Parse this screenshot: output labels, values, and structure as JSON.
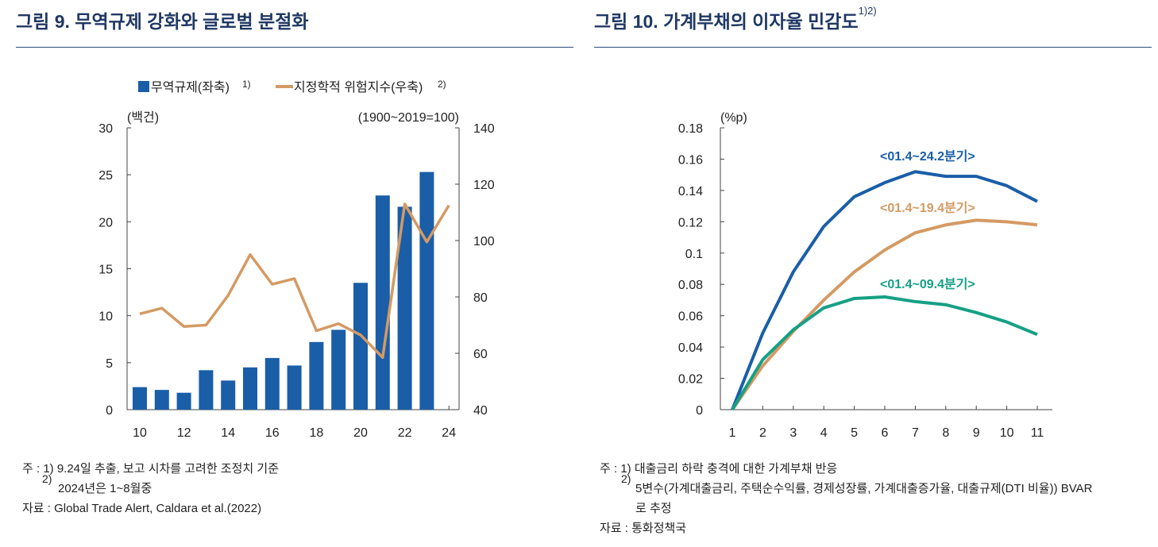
{
  "left_figure": {
    "title": "그림 9. 무역규제 강화와 글로벌 분절화",
    "notes_prefix": "주 :",
    "note_marks": [
      "1)",
      "2)"
    ],
    "notes": [
      "9.24일 추출, 보고 시차를 고려한 조정치 기준",
      "2024년은 1~8월중"
    ],
    "source_prefix": "자료 :",
    "source": "Global Trade Alert, Caldara et al.(2022)"
  },
  "right_figure": {
    "title": "그림 10. 가계부채의 이자율 민감도",
    "title_sup": "1)2)",
    "notes_prefix": "주 :",
    "note_marks": [
      "1)",
      "2)"
    ],
    "notes": [
      "대출금리 하락 충격에 대한 가계부채 반응",
      "5변수(가계대출금리, 주택순수익률, 경제성장률, 가계대출증가율, 대출규제(DTI 비율)) BVAR",
      "로 추정"
    ],
    "source_prefix": "자료 :",
    "source": "통화정책국"
  },
  "chart_data": [
    {
      "type": "bar",
      "title": "그림 9. 무역규제 강화와 글로벌 분절화",
      "ylabel_left": "(백건)",
      "ylabel_right": "(1900~2019=100)",
      "x": [
        10,
        11,
        12,
        13,
        14,
        15,
        16,
        17,
        18,
        19,
        20,
        21,
        22,
        23,
        24
      ],
      "x_ticks": [
        "10",
        "12",
        "14",
        "16",
        "18",
        "20",
        "22",
        "24"
      ],
      "x_tick_values": [
        10,
        12,
        14,
        16,
        18,
        20,
        22,
        24
      ],
      "ylim_left": [
        0,
        30
      ],
      "yticks_left": [
        0,
        5,
        10,
        15,
        20,
        25,
        30
      ],
      "ylim_right": [
        40,
        140
      ],
      "yticks_right": [
        40,
        60,
        80,
        100,
        120,
        140
      ],
      "series": [
        {
          "name": "무역규제(좌축)",
          "note": "1)",
          "type": "bar",
          "axis": "left",
          "color": "#1a5ea8",
          "x": [
            10,
            11,
            12,
            13,
            14,
            15,
            16,
            17,
            18,
            19,
            20,
            21,
            22,
            23
          ],
          "values": [
            2.4,
            2.1,
            1.8,
            4.2,
            3.1,
            4.5,
            5.5,
            4.7,
            7.2,
            8.5,
            13.5,
            22.8,
            21.6,
            25.3
          ]
        },
        {
          "name": "지정학적 위험지수(우축)",
          "note": "2)",
          "type": "line",
          "axis": "right",
          "color": "#d49a63",
          "x": [
            10,
            11,
            12,
            13,
            14,
            15,
            16,
            17,
            18,
            19,
            20,
            21,
            22,
            23,
            24
          ],
          "values": [
            74,
            76,
            69.5,
            70,
            80.5,
            95,
            84.5,
            86.5,
            68,
            70.5,
            66.5,
            58.5,
            113,
            99.5,
            112.5
          ]
        }
      ]
    },
    {
      "type": "line",
      "title": "그림 10. 가계부채의 이자율 민감도",
      "ylabel": "(%p)",
      "x": [
        1,
        2,
        3,
        4,
        5,
        6,
        7,
        8,
        9,
        10,
        11
      ],
      "ylim": [
        0,
        0.18
      ],
      "yticks": [
        0,
        0.02,
        0.04,
        0.06,
        0.08,
        0.1,
        0.12,
        0.14,
        0.16,
        0.18
      ],
      "ytick_labels": [
        "0",
        "0.02",
        "0.04",
        "0.06",
        "0.08",
        "0.1",
        "0.12",
        "0.14",
        "0.16",
        "0.18"
      ],
      "series": [
        {
          "name": "<01.4~24.2분기>",
          "color": "#1a5ea8",
          "values": [
            0,
            0.049,
            0.088,
            0.117,
            0.136,
            0.145,
            0.152,
            0.149,
            0.149,
            0.143,
            0.133
          ]
        },
        {
          "name": "<01.4~19.4분기>",
          "color": "#d49a63",
          "values": [
            0,
            0.028,
            0.05,
            0.07,
            0.088,
            0.102,
            0.113,
            0.118,
            0.121,
            0.12,
            0.118
          ]
        },
        {
          "name": "<01.4~09.4분기>",
          "color": "#16a085",
          "values": [
            0,
            0.032,
            0.051,
            0.065,
            0.071,
            0.072,
            0.069,
            0.067,
            0.062,
            0.056,
            0.048
          ]
        }
      ]
    }
  ]
}
